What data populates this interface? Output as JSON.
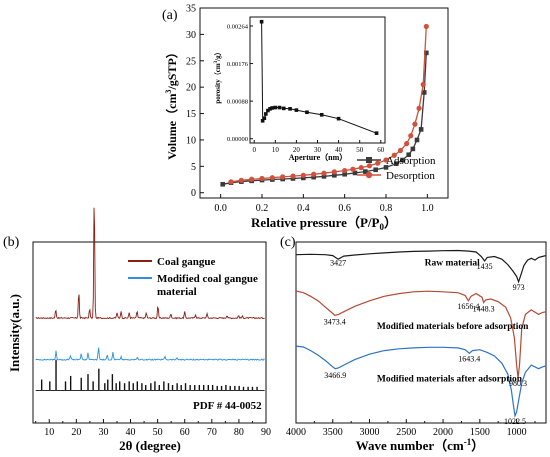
{
  "chart_data": [
    {
      "panel_label": "(a)",
      "type": "line",
      "xlabel": "Relative pressure（P/P",
      "xlabel_sub": "0",
      "xlabel_close": "）",
      "ylabel": "Volume（cm",
      "ylabel_sup": "3",
      "ylabel_rest": "/gSTP）",
      "xlim": [
        -0.1,
        1.1
      ],
      "ylim": [
        -1,
        35
      ],
      "xticks": [
        0.0,
        0.2,
        0.4,
        0.6,
        0.8,
        1.0
      ],
      "xtick_labels": [
        "0.0",
        "0.2",
        "0.4",
        "0.6",
        "0.8",
        "1.0"
      ],
      "yticks": [
        0,
        5,
        10,
        15,
        20,
        25,
        30,
        35
      ],
      "ytick_labels": [
        "0",
        "5",
        "10",
        "15",
        "20",
        "25",
        "30",
        "35"
      ],
      "legend_position": "bottom-right",
      "series": [
        {
          "name": "Adsorption",
          "color": "#3a3a3a",
          "marker": "square",
          "x": [
            0.01,
            0.05,
            0.1,
            0.15,
            0.2,
            0.25,
            0.3,
            0.35,
            0.4,
            0.45,
            0.5,
            0.55,
            0.6,
            0.65,
            0.7,
            0.75,
            0.8,
            0.85,
            0.88,
            0.91,
            0.93,
            0.95,
            0.97,
            0.985,
            0.995
          ],
          "y": [
            1.6,
            1.9,
            2.1,
            2.25,
            2.4,
            2.5,
            2.6,
            2.7,
            2.8,
            2.95,
            3.1,
            3.3,
            3.5,
            3.75,
            4.0,
            4.35,
            4.8,
            5.5,
            6.2,
            7.2,
            8.3,
            10.0,
            12.0,
            19.0,
            26.5
          ]
        },
        {
          "name": "Desorption",
          "color": "#d0513d",
          "marker": "circle",
          "x": [
            0.995,
            0.98,
            0.96,
            0.94,
            0.92,
            0.9,
            0.87,
            0.84,
            0.8,
            0.76,
            0.72,
            0.68,
            0.64,
            0.6,
            0.55,
            0.5,
            0.45,
            0.4,
            0.35,
            0.3,
            0.25,
            0.2,
            0.15,
            0.1,
            0.05
          ],
          "y": [
            31.5,
            20.5,
            16.0,
            13.0,
            10.8,
            9.3,
            8.0,
            7.1,
            6.2,
            5.6,
            5.1,
            4.75,
            4.45,
            4.2,
            3.95,
            3.7,
            3.5,
            3.3,
            3.15,
            3.0,
            2.85,
            2.7,
            2.55,
            2.35,
            2.05
          ]
        }
      ],
      "inset": {
        "type": "line",
        "xlabel": "Aperture（nm）",
        "ylabel": "porosity（cm",
        "ylabel_sup": "3",
        "ylabel_rest": "/g）",
        "xlim": [
          -2,
          62
        ],
        "ylim": [
          -0.0001,
          0.00285
        ],
        "xticks": [
          0,
          10,
          20,
          30,
          40,
          50,
          60
        ],
        "xtick_labels": [
          "0",
          "10",
          "20",
          "30",
          "40",
          "50",
          "60"
        ],
        "yticks": [
          0,
          0.00088,
          0.00176,
          0.00264
        ],
        "ytick_labels": [
          "0.00000",
          "0.00088",
          "0.00176",
          "0.00264"
        ],
        "series": [
          {
            "color": "#111111",
            "marker": "square",
            "x": [
              3.5,
              4.0,
              4.8,
              5.5,
              6.5,
              7.5,
              8.5,
              10.0,
              12.0,
              14.0,
              17.0,
              20.0,
              25.0,
              32.0,
              40.0,
              58.0
            ],
            "y": [
              0.00274,
              0.00042,
              0.00048,
              0.00058,
              0.00066,
              0.0007,
              0.00072,
              0.00073,
              0.00073,
              0.00071,
              0.0007,
              0.00067,
              0.00062,
              0.00056,
              0.00047,
              0.00013
            ]
          }
        ]
      }
    },
    {
      "panel_label": "(b)",
      "type": "line",
      "xlabel": "2θ (degree)",
      "ylabel": "Intensity(a.u.)",
      "xlim": [
        4,
        90
      ],
      "xticks": [
        10,
        20,
        30,
        40,
        50,
        60,
        70,
        80,
        90
      ],
      "xtick_labels": [
        "10",
        "20",
        "30",
        "40",
        "50",
        "60",
        "70",
        "80",
        "90"
      ],
      "legend_position": "top-right",
      "pdf_label": "PDF # 44-0052",
      "series": [
        {
          "name": "Coal gangue",
          "color": "#8b1d12",
          "baseline": 0.58,
          "peaks": [
            [
              12.4,
              0.05
            ],
            [
              20.9,
              0.15
            ],
            [
              24.9,
              0.05
            ],
            [
              26.6,
              0.71
            ],
            [
              35.0,
              0.03
            ],
            [
              36.5,
              0.04
            ],
            [
              39.5,
              0.03
            ],
            [
              42.4,
              0.04
            ],
            [
              45.8,
              0.03
            ],
            [
              50.1,
              0.07
            ],
            [
              54.9,
              0.025
            ],
            [
              60.0,
              0.035
            ],
            [
              64.0,
              0.02
            ],
            [
              68.2,
              0.025
            ],
            [
              75.6,
              0.015
            ],
            [
              79.9,
              0.015
            ],
            [
              81.3,
              0.01
            ]
          ]
        },
        {
          "name": "Modified coal gangue material",
          "color": "#2b8fe0",
          "baseline": 0.35,
          "peaks": [
            [
              12.5,
              0.05
            ],
            [
              17.8,
              0.025
            ],
            [
              21.8,
              0.035
            ],
            [
              24.3,
              0.04
            ],
            [
              28.2,
              0.07
            ],
            [
              31.4,
              0.025
            ],
            [
              33.5,
              0.04
            ],
            [
              36.5,
              0.015
            ],
            [
              42.5,
              0.015
            ],
            [
              52.7,
              0.02
            ],
            [
              57.2,
              0.01
            ]
          ]
        }
      ],
      "reference_sticks": {
        "baseline": 0.18,
        "color": "#111111",
        "lines": [
          [
            7.2,
            0.06
          ],
          [
            10.2,
            0.05
          ],
          [
            12.5,
            0.17
          ],
          [
            16.0,
            0.05
          ],
          [
            17.9,
            0.08
          ],
          [
            21.8,
            0.07
          ],
          [
            24.3,
            0.09
          ],
          [
            26.2,
            0.05
          ],
          [
            28.3,
            0.12
          ],
          [
            30.5,
            0.04
          ],
          [
            31.6,
            0.06
          ],
          [
            33.3,
            0.09
          ],
          [
            34.7,
            0.04
          ],
          [
            36.0,
            0.05
          ],
          [
            37.8,
            0.04
          ],
          [
            39.5,
            0.05
          ],
          [
            41.0,
            0.04
          ],
          [
            42.5,
            0.05
          ],
          [
            44.2,
            0.04
          ],
          [
            45.6,
            0.03
          ],
          [
            47.5,
            0.04
          ],
          [
            49.0,
            0.05
          ],
          [
            50.6,
            0.03
          ],
          [
            52.3,
            0.05
          ],
          [
            54.0,
            0.04
          ],
          [
            55.5,
            0.03
          ],
          [
            57.2,
            0.04
          ],
          [
            58.7,
            0.03
          ],
          [
            60.3,
            0.04
          ],
          [
            62.0,
            0.03
          ],
          [
            63.7,
            0.03
          ],
          [
            65.4,
            0.03
          ],
          [
            67.0,
            0.03
          ],
          [
            68.7,
            0.03
          ],
          [
            70.3,
            0.03
          ],
          [
            72.0,
            0.025
          ],
          [
            73.6,
            0.025
          ],
          [
            75.2,
            0.03
          ],
          [
            76.8,
            0.025
          ],
          [
            78.5,
            0.025
          ],
          [
            80.1,
            0.025
          ],
          [
            81.7,
            0.02
          ],
          [
            83.4,
            0.02
          ],
          [
            85.0,
            0.02
          ],
          [
            86.7,
            0.02
          ]
        ]
      }
    },
    {
      "panel_label": "(c)",
      "type": "line",
      "xlabel": "Wave number（cm",
      "xlabel_sup": "-1",
      "xlabel_close": "）",
      "xlim": [
        4000,
        600
      ],
      "xticks": [
        4000,
        3500,
        3000,
        2500,
        2000,
        1500,
        1000
      ],
      "xtick_labels": [
        "4000",
        "3500",
        "3000",
        "2500",
        "2000",
        "1500",
        "1000"
      ],
      "series": [
        {
          "name": "Raw material",
          "color": "#1a1a1a",
          "baseline": 0.93,
          "x": [
            4000,
            3800,
            3600,
            3500,
            3427,
            3350,
            3200,
            3000,
            2800,
            2600,
            2400,
            2200,
            2000,
            1800,
            1650,
            1550,
            1480,
            1435,
            1400,
            1300,
            1200,
            1120,
            1050,
            1000,
            973,
            940,
            900,
            850,
            800,
            750,
            700,
            650,
            600
          ],
          "y": [
            0.93,
            0.932,
            0.93,
            0.925,
            0.905,
            0.922,
            0.928,
            0.935,
            0.94,
            0.945,
            0.948,
            0.95,
            0.952,
            0.953,
            0.95,
            0.945,
            0.92,
            0.895,
            0.915,
            0.92,
            0.905,
            0.875,
            0.84,
            0.81,
            0.78,
            0.82,
            0.87,
            0.9,
            0.91,
            0.9,
            0.915,
            0.92,
            0.925
          ]
        },
        {
          "name": "Modified materials before adsorption",
          "color": "#b54a35",
          "x": [
            4000,
            3900,
            3800,
            3700,
            3600,
            3500,
            3473,
            3420,
            3350,
            3200,
            3000,
            2800,
            2600,
            2400,
            2200,
            2000,
            1800,
            1700,
            1656,
            1620,
            1550,
            1470,
            1448,
            1420,
            1350,
            1250,
            1150,
            1080,
            1030,
            1000,
            980,
            960,
            930,
            880,
            800,
            700,
            650,
            600
          ],
          "y": [
            0.73,
            0.72,
            0.7,
            0.675,
            0.64,
            0.605,
            0.595,
            0.6,
            0.615,
            0.645,
            0.675,
            0.7,
            0.715,
            0.725,
            0.728,
            0.725,
            0.72,
            0.705,
            0.675,
            0.7,
            0.715,
            0.695,
            0.665,
            0.68,
            0.685,
            0.67,
            0.64,
            0.58,
            0.47,
            0.32,
            0.25,
            0.32,
            0.52,
            0.6,
            0.625,
            0.6,
            0.61,
            0.615
          ]
        },
        {
          "name": "Modified materials after adsorption",
          "color": "#2e73c9",
          "x": [
            4000,
            3900,
            3800,
            3700,
            3600,
            3500,
            3467,
            3420,
            3350,
            3200,
            3000,
            2800,
            2600,
            2400,
            2200,
            2000,
            1800,
            1700,
            1643,
            1600,
            1500,
            1400,
            1300,
            1200,
            1120,
            1070,
            1040,
            1022,
            1000,
            970,
            930,
            880,
            800,
            700,
            650,
            600
          ],
          "y": [
            0.425,
            0.42,
            0.4,
            0.375,
            0.345,
            0.31,
            0.3,
            0.305,
            0.32,
            0.35,
            0.38,
            0.4,
            0.41,
            0.415,
            0.418,
            0.418,
            0.415,
            0.405,
            0.385,
            0.4,
            0.405,
            0.39,
            0.37,
            0.33,
            0.27,
            0.18,
            0.09,
            0.04,
            0.06,
            0.13,
            0.22,
            0.28,
            0.32,
            0.3,
            0.31,
            0.315
          ]
        }
      ],
      "peak_labels": [
        {
          "text": "3427",
          "x": 3427,
          "y": 0.87
        },
        {
          "text": "1435",
          "x": 1435,
          "y": 0.85
        },
        {
          "text": "973",
          "x": 973,
          "y": 0.735
        },
        {
          "text": "3473.4",
          "x": 3473,
          "y": 0.545
        },
        {
          "text": "1656.4",
          "x": 1656,
          "y": 0.63
        },
        {
          "text": "1448.3",
          "x": 1448,
          "y": 0.615
        },
        {
          "text": "980.3",
          "x": 980,
          "y": 0.205
        },
        {
          "text": "3466.9",
          "x": 3467,
          "y": 0.25
        },
        {
          "text": "1643.4",
          "x": 1643,
          "y": 0.34
        },
        {
          "text": "1022.5",
          "x": 1022,
          "y": -0.005
        }
      ],
      "series_labels": [
        {
          "text": "Raw material",
          "x": 2250,
          "y": 0.87
        },
        {
          "text": "Modified materials before adsorption",
          "x": 2900,
          "y": 0.52
        },
        {
          "text": "Modified materials after adsorption",
          "x": 2900,
          "y": 0.23
        }
      ]
    }
  ]
}
